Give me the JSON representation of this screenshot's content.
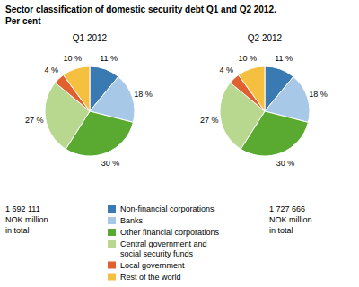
{
  "chart_data": {
    "type": "pie",
    "title": "Sector classification of domestic security debt Q1 and Q2 2012.",
    "subtitle": "Per cent",
    "categories": [
      "Non-financial corporations",
      "Banks",
      "Other financial corporations",
      "Central government and\nsocial security funds",
      "Local government",
      "Rest of the world"
    ],
    "colors": [
      "#3a7ab3",
      "#a8c8e8",
      "#5aaa32",
      "#b8d890",
      "#e06030",
      "#f5c040"
    ],
    "series": [
      {
        "name": "Q1 2012",
        "values": [
          11,
          18,
          30,
          27,
          4,
          10
        ],
        "value_labels": [
          "11 %",
          "18 %",
          "30 %",
          "27 %",
          "4 %",
          "10 %"
        ]
      },
      {
        "name": "Q2 2012",
        "values": [
          11,
          18,
          30,
          27,
          4,
          10
        ],
        "value_labels": [
          "11 %",
          "18 %",
          "30 %",
          "27 %",
          "4 %",
          "10 %"
        ]
      }
    ],
    "annotations": [
      "1 692 111\nNOK million\nin total",
      "1 727 666\nNOK million\nin total"
    ],
    "data_labels": true,
    "legend": "bottom"
  }
}
